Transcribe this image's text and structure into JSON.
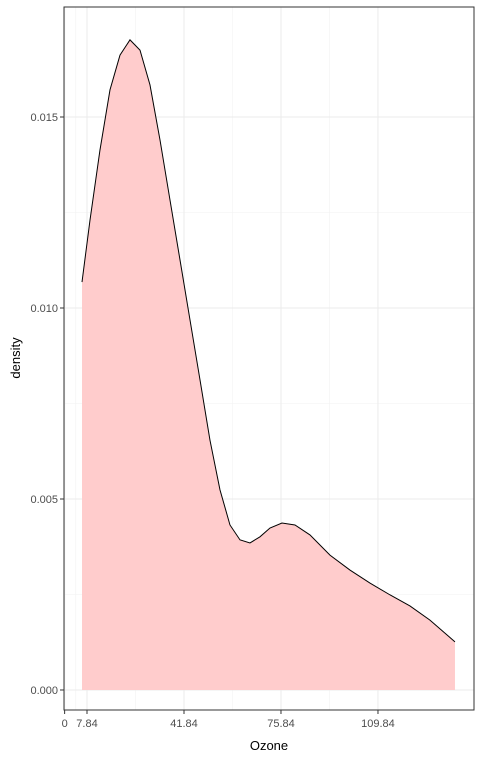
{
  "chart_data": {
    "type": "area",
    "x_label": "Ozone",
    "y_label": "density",
    "x": [
      6.09,
      8.89,
      12.4,
      15.9,
      19.41,
      22.91,
      26.42,
      29.92,
      33.43,
      36.93,
      40.44,
      43.94,
      47.45,
      50.95,
      54.46,
      57.96,
      61.47,
      64.97,
      68.48,
      71.98,
      76.19,
      80.75,
      86.0,
      93.01,
      100.02,
      107.03,
      114.04,
      121.05,
      128.06,
      136.83
    ],
    "values": [
      0.01068,
      0.0123,
      0.01414,
      0.01571,
      0.01662,
      0.01702,
      0.01675,
      0.01584,
      0.0144,
      0.01283,
      0.01126,
      0.00969,
      0.00812,
      0.00654,
      0.00524,
      0.00432,
      0.00393,
      0.00385,
      0.00401,
      0.00424,
      0.00437,
      0.00432,
      0.00406,
      0.00353,
      0.00314,
      0.0028,
      0.00249,
      0.0022,
      0.00183,
      0.00126
    ],
    "color": "#ffcccc",
    "line_color": "#000000",
    "xlim": [
      -0.22,
      143.5
    ],
    "ylim": [
      -0.000524,
      0.01788
    ],
    "xticks": [
      0,
      7.84,
      41.84,
      75.84,
      109.84
    ],
    "yticks": [
      {
        "value": 0,
        "label": "0.000"
      },
      {
        "value": 0.005,
        "label": "0.005"
      },
      {
        "value": 0.01,
        "label": "0.010"
      },
      {
        "value": 0.015,
        "label": "0.015"
      }
    ],
    "grid": true
  }
}
